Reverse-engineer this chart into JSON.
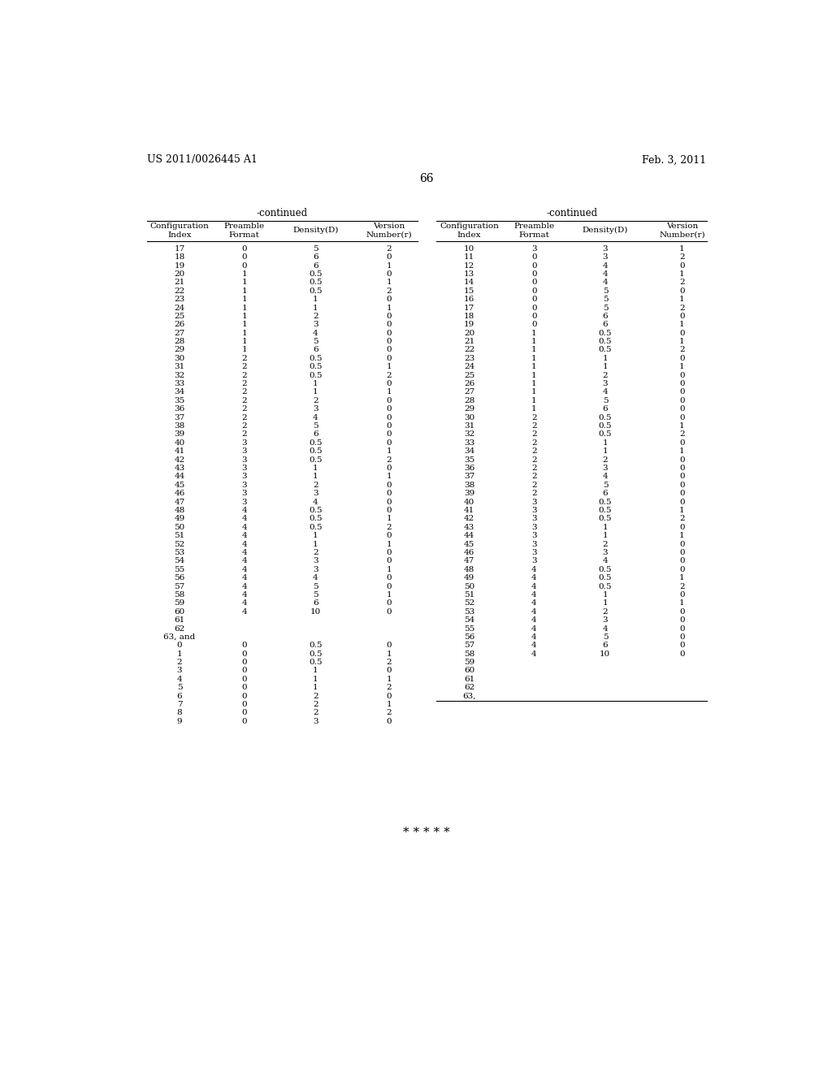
{
  "patent_num": "US 2011/0026445 A1",
  "patent_date": "Feb. 3, 2011",
  "page_num": "66",
  "left_table": {
    "title": "-continued",
    "headers": [
      "Configuration\nIndex",
      "Preamble\nFormat",
      "Density(D)",
      "Version\nNumber(r)"
    ],
    "rows": [
      [
        "17",
        "0",
        "5",
        "2"
      ],
      [
        "18",
        "0",
        "6",
        "0"
      ],
      [
        "19",
        "0",
        "6",
        "1"
      ],
      [
        "20",
        "1",
        "0.5",
        "0"
      ],
      [
        "21",
        "1",
        "0.5",
        "1"
      ],
      [
        "22",
        "1",
        "0.5",
        "2"
      ],
      [
        "23",
        "1",
        "1",
        "0"
      ],
      [
        "24",
        "1",
        "1",
        "1"
      ],
      [
        "25",
        "1",
        "2",
        "0"
      ],
      [
        "26",
        "1",
        "3",
        "0"
      ],
      [
        "27",
        "1",
        "4",
        "0"
      ],
      [
        "28",
        "1",
        "5",
        "0"
      ],
      [
        "29",
        "1",
        "6",
        "0"
      ],
      [
        "30",
        "2",
        "0.5",
        "0"
      ],
      [
        "31",
        "2",
        "0.5",
        "1"
      ],
      [
        "32",
        "2",
        "0.5",
        "2"
      ],
      [
        "33",
        "2",
        "1",
        "0"
      ],
      [
        "34",
        "2",
        "1",
        "1"
      ],
      [
        "35",
        "2",
        "2",
        "0"
      ],
      [
        "36",
        "2",
        "3",
        "0"
      ],
      [
        "37",
        "2",
        "4",
        "0"
      ],
      [
        "38",
        "2",
        "5",
        "0"
      ],
      [
        "39",
        "2",
        "6",
        "0"
      ],
      [
        "40",
        "3",
        "0.5",
        "0"
      ],
      [
        "41",
        "3",
        "0.5",
        "1"
      ],
      [
        "42",
        "3",
        "0.5",
        "2"
      ],
      [
        "43",
        "3",
        "1",
        "0"
      ],
      [
        "44",
        "3",
        "1",
        "1"
      ],
      [
        "45",
        "3",
        "2",
        "0"
      ],
      [
        "46",
        "3",
        "3",
        "0"
      ],
      [
        "47",
        "3",
        "4",
        "0"
      ],
      [
        "48",
        "4",
        "0.5",
        "0"
      ],
      [
        "49",
        "4",
        "0.5",
        "1"
      ],
      [
        "50",
        "4",
        "0.5",
        "2"
      ],
      [
        "51",
        "4",
        "1",
        "0"
      ],
      [
        "52",
        "4",
        "1",
        "1"
      ],
      [
        "53",
        "4",
        "2",
        "0"
      ],
      [
        "54",
        "4",
        "3",
        "0"
      ],
      [
        "55",
        "4",
        "3",
        "1"
      ],
      [
        "56",
        "4",
        "4",
        "0"
      ],
      [
        "57",
        "4",
        "5",
        "0"
      ],
      [
        "58",
        "4",
        "5",
        "1"
      ],
      [
        "59",
        "4",
        "6",
        "0"
      ],
      [
        "60",
        "4",
        "10",
        "0"
      ],
      [
        "61",
        "",
        "",
        ""
      ],
      [
        "62",
        "",
        "",
        ""
      ],
      [
        "63, and",
        "",
        "",
        ""
      ],
      [
        "0",
        "0",
        "0.5",
        "0"
      ],
      [
        "1",
        "0",
        "0.5",
        "1"
      ],
      [
        "2",
        "0",
        "0.5",
        "2"
      ],
      [
        "3",
        "0",
        "1",
        "0"
      ],
      [
        "4",
        "0",
        "1",
        "1"
      ],
      [
        "5",
        "0",
        "1",
        "2"
      ],
      [
        "6",
        "0",
        "2",
        "0"
      ],
      [
        "7",
        "0",
        "2",
        "1"
      ],
      [
        "8",
        "0",
        "2",
        "2"
      ],
      [
        "9",
        "0",
        "3",
        "0"
      ]
    ]
  },
  "right_table": {
    "title": "-continued",
    "headers": [
      "Configuration\nIndex",
      "Preamble\nFormat",
      "Density(D)",
      "Version\nNumber(r)"
    ],
    "rows": [
      [
        "10",
        "3",
        "3",
        "1"
      ],
      [
        "11",
        "0",
        "3",
        "2"
      ],
      [
        "12",
        "0",
        "4",
        "0"
      ],
      [
        "13",
        "0",
        "4",
        "1"
      ],
      [
        "14",
        "0",
        "4",
        "2"
      ],
      [
        "15",
        "0",
        "5",
        "0"
      ],
      [
        "16",
        "0",
        "5",
        "1"
      ],
      [
        "17",
        "0",
        "5",
        "2"
      ],
      [
        "18",
        "0",
        "6",
        "0"
      ],
      [
        "19",
        "0",
        "6",
        "1"
      ],
      [
        "20",
        "1",
        "0.5",
        "0"
      ],
      [
        "21",
        "1",
        "0.5",
        "1"
      ],
      [
        "22",
        "1",
        "0.5",
        "2"
      ],
      [
        "23",
        "1",
        "1",
        "0"
      ],
      [
        "24",
        "1",
        "1",
        "1"
      ],
      [
        "25",
        "1",
        "2",
        "0"
      ],
      [
        "26",
        "1",
        "3",
        "0"
      ],
      [
        "27",
        "1",
        "4",
        "0"
      ],
      [
        "28",
        "1",
        "5",
        "0"
      ],
      [
        "29",
        "1",
        "6",
        "0"
      ],
      [
        "30",
        "2",
        "0.5",
        "0"
      ],
      [
        "31",
        "2",
        "0.5",
        "1"
      ],
      [
        "32",
        "2",
        "0.5",
        "2"
      ],
      [
        "33",
        "2",
        "1",
        "0"
      ],
      [
        "34",
        "2",
        "1",
        "1"
      ],
      [
        "35",
        "2",
        "2",
        "0"
      ],
      [
        "36",
        "2",
        "3",
        "0"
      ],
      [
        "37",
        "2",
        "4",
        "0"
      ],
      [
        "38",
        "2",
        "5",
        "0"
      ],
      [
        "39",
        "2",
        "6",
        "0"
      ],
      [
        "40",
        "3",
        "0.5",
        "0"
      ],
      [
        "41",
        "3",
        "0.5",
        "1"
      ],
      [
        "42",
        "3",
        "0.5",
        "2"
      ],
      [
        "43",
        "3",
        "1",
        "0"
      ],
      [
        "44",
        "3",
        "1",
        "1"
      ],
      [
        "45",
        "3",
        "2",
        "0"
      ],
      [
        "46",
        "3",
        "3",
        "0"
      ],
      [
        "47",
        "3",
        "4",
        "0"
      ],
      [
        "48",
        "4",
        "0.5",
        "0"
      ],
      [
        "49",
        "4",
        "0.5",
        "1"
      ],
      [
        "50",
        "4",
        "0.5",
        "2"
      ],
      [
        "51",
        "4",
        "1",
        "0"
      ],
      [
        "52",
        "4",
        "1",
        "1"
      ],
      [
        "53",
        "4",
        "2",
        "0"
      ],
      [
        "54",
        "4",
        "3",
        "0"
      ],
      [
        "55",
        "4",
        "4",
        "0"
      ],
      [
        "56",
        "4",
        "5",
        "0"
      ],
      [
        "57",
        "4",
        "6",
        "0"
      ],
      [
        "58",
        "4",
        "10",
        "0"
      ],
      [
        "59",
        "",
        "",
        ""
      ],
      [
        "60",
        "",
        "",
        ""
      ],
      [
        "61",
        "",
        "",
        ""
      ],
      [
        "62",
        "",
        "",
        ""
      ],
      [
        "63,",
        "",
        "",
        ""
      ]
    ]
  },
  "asterisks": "* * * * *",
  "bg_color": "#ffffff",
  "text_color": "#000000",
  "font_size": 7.5,
  "header_font_size": 7.5,
  "title_font_size": 8.5
}
